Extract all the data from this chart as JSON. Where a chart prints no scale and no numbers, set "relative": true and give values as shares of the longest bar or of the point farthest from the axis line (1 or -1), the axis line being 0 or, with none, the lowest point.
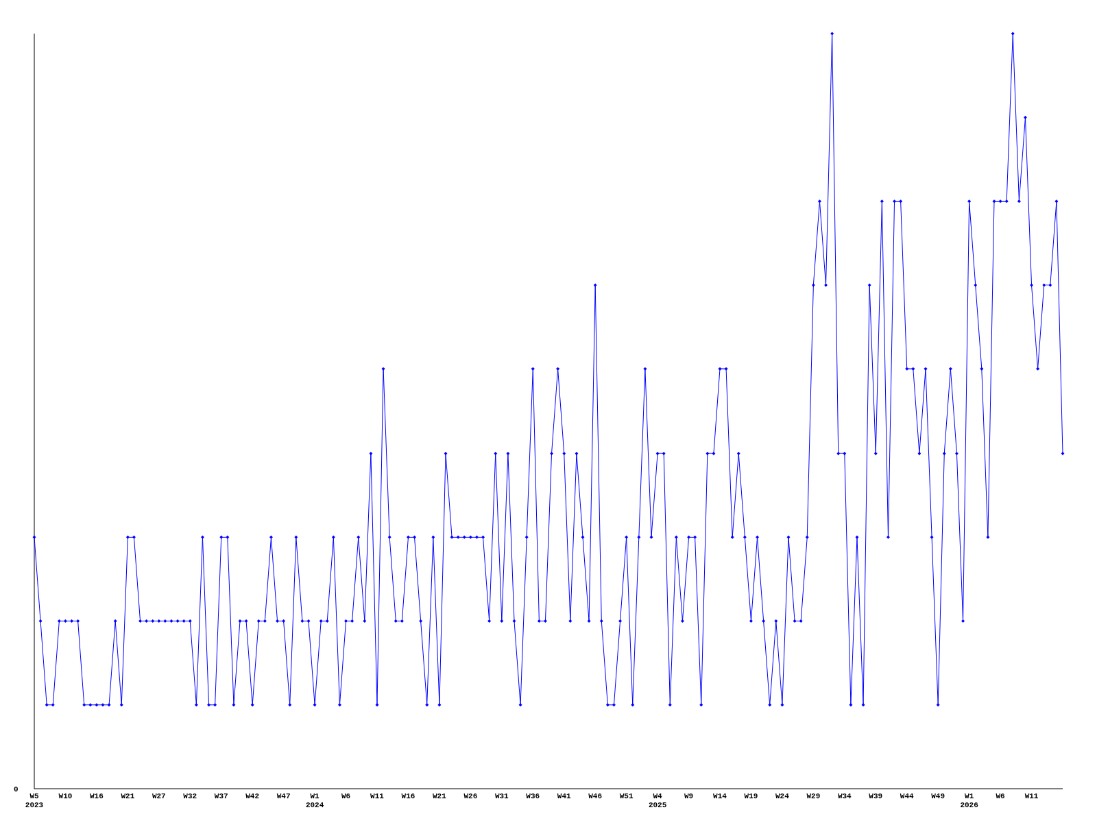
{
  "chart_data": {
    "type": "line",
    "relative": true,
    "marker": "diamond",
    "line_style": "solid",
    "grid": false,
    "annotations": [
      "0"
    ],
    "categories": [
      "W5\n2023",
      null,
      null,
      null,
      null,
      "W10",
      null,
      null,
      null,
      null,
      "W16",
      null,
      null,
      null,
      null,
      "W21",
      null,
      null,
      null,
      null,
      "W27",
      null,
      null,
      null,
      null,
      "W32",
      null,
      null,
      null,
      null,
      "W37",
      null,
      null,
      null,
      null,
      "W42",
      null,
      null,
      null,
      null,
      "W47",
      null,
      null,
      null,
      null,
      "W1\n2024",
      null,
      null,
      null,
      null,
      "W6",
      null,
      null,
      null,
      null,
      "W11",
      null,
      null,
      null,
      null,
      "W16",
      null,
      null,
      null,
      null,
      "W21",
      null,
      null,
      null,
      null,
      "W26",
      null,
      null,
      null,
      null,
      "W31",
      null,
      null,
      null,
      null,
      "W36",
      null,
      null,
      null,
      null,
      "W41",
      null,
      null,
      null,
      null,
      "W46",
      null,
      null,
      null,
      null,
      "W51",
      null,
      null,
      null,
      null,
      "W4\n2025",
      null,
      null,
      null,
      null,
      "W9",
      null,
      null,
      null,
      null,
      "W14",
      null,
      null,
      null,
      null,
      "W19",
      null,
      null,
      null,
      null,
      "W24",
      null,
      null,
      null,
      null,
      "W29",
      null,
      null,
      null,
      null,
      "W34",
      null,
      null,
      null,
      null,
      "W39",
      null,
      null,
      null,
      null,
      "W44",
      null,
      null,
      null,
      null,
      "W49",
      null,
      null,
      null,
      null,
      "W1\n2026",
      null,
      null,
      null,
      null,
      "W6",
      null,
      null,
      null,
      null,
      "W11",
      null,
      null,
      null,
      null,
      null
    ],
    "series": [
      {
        "color": "#0000ff",
        "values": [
          0.333,
          0.222,
          0.111,
          0.111,
          0.222,
          0.222,
          0.222,
          0.222,
          0.111,
          0.111,
          0.111,
          0.111,
          0.111,
          0.222,
          0.111,
          0.333,
          0.333,
          0.222,
          0.222,
          0.222,
          0.222,
          0.222,
          0.222,
          0.222,
          0.222,
          0.222,
          0.111,
          0.333,
          0.111,
          0.111,
          0.333,
          0.333,
          0.111,
          0.222,
          0.222,
          0.111,
          0.222,
          0.222,
          0.333,
          0.222,
          0.222,
          0.111,
          0.333,
          0.222,
          0.222,
          0.111,
          0.222,
          0.222,
          0.333,
          0.111,
          0.222,
          0.222,
          0.333,
          0.222,
          0.444,
          0.111,
          0.556,
          0.333,
          0.222,
          0.222,
          0.333,
          0.333,
          0.222,
          0.111,
          0.333,
          0.111,
          0.444,
          0.333,
          0.333,
          0.333,
          0.333,
          0.333,
          0.333,
          0.222,
          0.444,
          0.222,
          0.444,
          0.222,
          0.111,
          0.333,
          0.556,
          0.222,
          0.222,
          0.444,
          0.556,
          0.444,
          0.222,
          0.444,
          0.333,
          0.222,
          0.667,
          0.222,
          0.111,
          0.111,
          0.222,
          0.333,
          0.111,
          0.333,
          0.556,
          0.333,
          0.444,
          0.444,
          0.111,
          0.333,
          0.222,
          0.333,
          0.333,
          0.111,
          0.444,
          0.444,
          0.556,
          0.556,
          0.333,
          0.444,
          0.333,
          0.222,
          0.333,
          0.222,
          0.111,
          0.222,
          0.111,
          0.333,
          0.222,
          0.222,
          0.333,
          0.667,
          0.778,
          0.667,
          1,
          0.444,
          0.444,
          0.111,
          0.333,
          0.111,
          0.667,
          0.444,
          0.778,
          0.333,
          0.778,
          0.778,
          0.556,
          0.556,
          0.444,
          0.556,
          0.333,
          0.111,
          0.444,
          0.556,
          0.444,
          0.222,
          0.778,
          0.667,
          0.556,
          0.333,
          0.778,
          0.778,
          0.778,
          1,
          0.778,
          0.889,
          0.667,
          0.556,
          0.667,
          0.667,
          0.778,
          0.444
        ]
      }
    ]
  }
}
